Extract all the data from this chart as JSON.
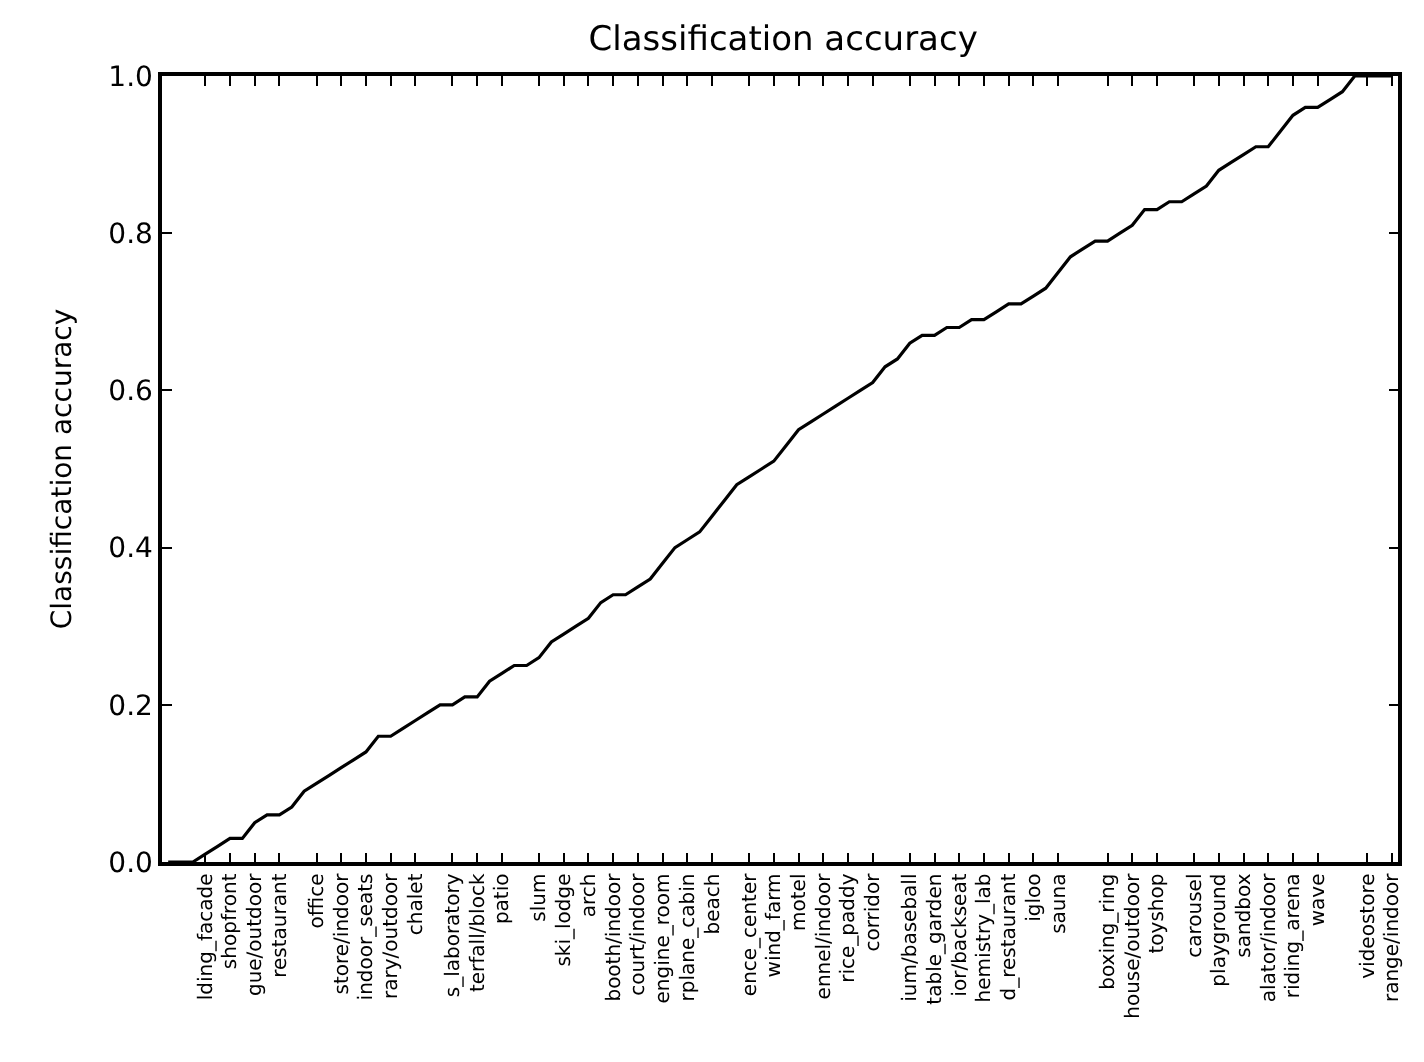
{
  "chart_data": {
    "type": "line",
    "title": "Classification accuracy",
    "ylabel": "Classification accuracy",
    "categories": [
      null,
      null,
      null,
      "lding_facade",
      null,
      "shopfront",
      null,
      "gue/outdoor",
      null,
      "restaurant",
      null,
      null,
      "office",
      null,
      "store/indoor",
      null,
      "indoor_seats",
      null,
      "rary/outdoor",
      null,
      "chalet",
      null,
      null,
      "s_laboratory",
      null,
      "terfall/block",
      null,
      "patio",
      null,
      null,
      "slum",
      null,
      "ski_lodge",
      null,
      "arch",
      null,
      "booth/indoor",
      null,
      "court/indoor",
      null,
      "engine_room",
      null,
      "rplane_cabin",
      null,
      "beach",
      null,
      null,
      "ence_center",
      null,
      "wind_farm",
      null,
      "motel",
      null,
      "ennel/indoor",
      null,
      "rice_paddy",
      null,
      "corridor",
      null,
      null,
      "ium/baseball",
      null,
      "table_garden",
      null,
      "ior/backseat",
      null,
      "hemistry_lab",
      null,
      "d_restaurant",
      null,
      "igloo",
      null,
      "sauna",
      null,
      null,
      null,
      "boxing_ring",
      null,
      "house/outdoor",
      null,
      "toyshop",
      null,
      null,
      "carousel",
      null,
      "playground",
      null,
      "sandbox",
      null,
      "alator/indoor",
      null,
      "riding_arena",
      null,
      "wave",
      null,
      null,
      null,
      "videostore",
      null,
      "range/indoor"
    ],
    "series": [
      {
        "color": "#000000",
        "values": [
          0.0,
          0.0,
          0.0,
          0.01,
          0.02,
          0.03,
          0.03,
          0.05,
          0.06,
          0.06,
          0.07,
          0.09,
          0.1,
          0.11,
          0.12,
          0.13,
          0.14,
          0.16,
          0.16,
          0.17,
          0.18,
          0.19,
          0.2,
          0.2,
          0.21,
          0.21,
          0.23,
          0.24,
          0.25,
          0.25,
          0.26,
          0.28,
          0.29,
          0.3,
          0.31,
          0.33,
          0.34,
          0.34,
          0.35,
          0.36,
          0.38,
          0.4,
          0.41,
          0.42,
          0.44,
          0.46,
          0.48,
          0.49,
          0.5,
          0.51,
          0.53,
          0.55,
          0.56,
          0.57,
          0.58,
          0.59,
          0.6,
          0.61,
          0.63,
          0.64,
          0.66,
          0.67,
          0.67,
          0.68,
          0.68,
          0.69,
          0.69,
          0.7,
          0.71,
          0.71,
          0.72,
          0.73,
          0.75,
          0.77,
          0.78,
          0.79,
          0.79,
          0.8,
          0.81,
          0.83,
          0.83,
          0.84,
          0.84,
          0.85,
          0.86,
          0.88,
          0.89,
          0.9,
          0.91,
          0.91,
          0.93,
          0.95,
          0.96,
          0.96,
          0.97,
          0.98,
          1.0,
          1.0,
          1.0,
          1.0
        ]
      }
    ],
    "ylim": [
      0,
      1
    ],
    "yticks": [
      {
        "value": 0,
        "label": "0.0"
      },
      {
        "value": 0.2,
        "label": "0.2"
      },
      {
        "value": 0.4,
        "label": "0.4"
      },
      {
        "value": 0.6,
        "label": "0.6"
      },
      {
        "value": 0.8,
        "label": "0.8"
      },
      {
        "value": 1,
        "label": "1.0"
      }
    ],
    "marker": "none",
    "line_style": "solid"
  }
}
